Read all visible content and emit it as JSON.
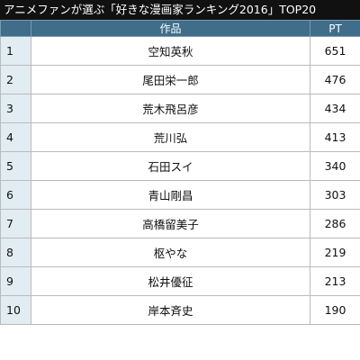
{
  "title": "アニメファンが選ぶ「好きな漫画家ランキング2016」TOP20",
  "columns": {
    "rank": "",
    "work": "作品",
    "pt": "PT"
  },
  "rows": [
    {
      "rank": "1",
      "name": "空知英秋",
      "pt": "651"
    },
    {
      "rank": "2",
      "name": "尾田栄一郎",
      "pt": "476"
    },
    {
      "rank": "3",
      "name": "荒木飛呂彦",
      "pt": "434"
    },
    {
      "rank": "4",
      "name": "荒川弘",
      "pt": "413"
    },
    {
      "rank": "5",
      "name": "石田スイ",
      "pt": "340"
    },
    {
      "rank": "6",
      "name": "青山剛昌",
      "pt": "303"
    },
    {
      "rank": "7",
      "name": "高橋留美子",
      "pt": "286"
    },
    {
      "rank": "8",
      "name": "枢やな",
      "pt": "219"
    },
    {
      "rank": "9",
      "name": "松井優征",
      "pt": "213"
    },
    {
      "rank": "10",
      "name": "岸本斉史",
      "pt": "190"
    }
  ],
  "colors": {
    "title_bg": "#111111",
    "header_bg": "#3f6d8a",
    "rank_bg": "#e2ecf3"
  }
}
